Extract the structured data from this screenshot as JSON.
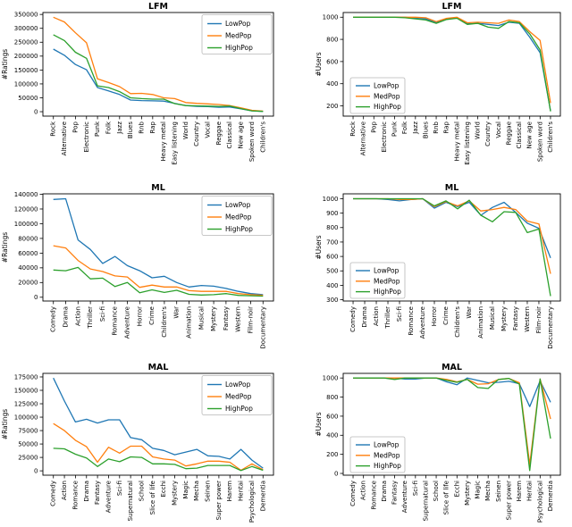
{
  "figure": {
    "background": "#ffffff"
  },
  "legend": {
    "labels": [
      "LowPop",
      "MedPop",
      "HighPop"
    ],
    "colors": {
      "LowPop": "#1f77b4",
      "MedPop": "#ff7f0e",
      "HighPop": "#2ca02c"
    }
  },
  "chart_data": [
    {
      "type": "line",
      "title": "LFM",
      "ylabel": "#Ratings",
      "xlabel": "",
      "legend_position": "upper-right",
      "grid": false,
      "ylim": [
        0,
        350000
      ],
      "yticks": [
        0,
        50000,
        100000,
        150000,
        200000,
        250000,
        300000,
        350000
      ],
      "categories": [
        "Rock",
        "Alternative",
        "Pop",
        "Electronic",
        "Punk",
        "Folk",
        "Jazz",
        "Blues",
        "Rnb",
        "Rap",
        "Heavy metal",
        "Easy listening",
        "World",
        "Country",
        "Vocal",
        "Reggae",
        "Classical",
        "New age",
        "Spoken word",
        "Children's"
      ],
      "series": [
        {
          "name": "LowPop",
          "color": "#1f77b4",
          "values": [
            225000,
            203000,
            170000,
            151000,
            87000,
            75000,
            62000,
            42000,
            40000,
            39000,
            38000,
            30000,
            22000,
            19000,
            18000,
            16000,
            17000,
            10000,
            3000,
            1000
          ]
        },
        {
          "name": "MedPop",
          "color": "#ff7f0e",
          "values": [
            340000,
            323000,
            284000,
            248000,
            118000,
            105000,
            90000,
            65000,
            66000,
            62000,
            50000,
            47000,
            33000,
            30000,
            28000,
            26000,
            22000,
            14000,
            5000,
            2000
          ]
        },
        {
          "name": "HighPop",
          "color": "#2ca02c",
          "values": [
            277000,
            256000,
            214000,
            192000,
            93000,
            87000,
            72000,
            50000,
            47000,
            45000,
            45000,
            29000,
            22000,
            21000,
            20000,
            19000,
            20000,
            11000,
            3000,
            1000
          ]
        }
      ]
    },
    {
      "type": "line",
      "title": "LFM",
      "ylabel": "#Users",
      "xlabel": "",
      "legend_position": "lower-left",
      "grid": false,
      "ylim": [
        200,
        1000
      ],
      "yticks": [
        200,
        400,
        600,
        800,
        1000
      ],
      "categories": [
        "Rock",
        "Alternative",
        "Pop",
        "Electronic",
        "Punk",
        "Folk",
        "Jazz",
        "Blues",
        "Rnb",
        "Rap",
        "Heavy metal",
        "Easy listening",
        "World",
        "Country",
        "Vocal",
        "Reggae",
        "Classical",
        "New age",
        "Spoken word",
        "Children's"
      ],
      "series": [
        {
          "name": "LowPop",
          "color": "#1f77b4",
          "values": [
            1000,
            1000,
            1000,
            1000,
            1000,
            1000,
            990,
            985,
            950,
            985,
            995,
            940,
            945,
            935,
            925,
            955,
            945,
            820,
            680,
            155
          ]
        },
        {
          "name": "MedPop",
          "color": "#ff7f0e",
          "values": [
            1000,
            1000,
            1000,
            1000,
            1000,
            1000,
            1000,
            995,
            960,
            990,
            1000,
            950,
            955,
            950,
            945,
            975,
            960,
            870,
            790,
            225
          ]
        },
        {
          "name": "HighPop",
          "color": "#2ca02c",
          "values": [
            1000,
            1000,
            1000,
            1000,
            1000,
            995,
            985,
            975,
            945,
            980,
            990,
            935,
            945,
            910,
            900,
            960,
            950,
            850,
            705,
            150
          ]
        }
      ]
    },
    {
      "type": "line",
      "title": "ML",
      "ylabel": "#Ratings",
      "xlabel": "",
      "legend_position": "upper-right",
      "grid": false,
      "ylim": [
        0,
        140000
      ],
      "yticks": [
        0,
        20000,
        40000,
        60000,
        80000,
        100000,
        120000,
        140000
      ],
      "categories": [
        "Comedy",
        "Drama",
        "Action",
        "Thriller",
        "Sci-fi",
        "Romance",
        "Adventure",
        "Horror",
        "Crime",
        "Children's",
        "War",
        "Animation",
        "Musical",
        "Mystery",
        "Fantasy",
        "Western",
        "Film-noir",
        "Documentary"
      ],
      "series": [
        {
          "name": "LowPop",
          "color": "#1f77b4",
          "values": [
            133000,
            134000,
            78000,
            65000,
            46000,
            55500,
            43000,
            36000,
            26500,
            28500,
            20000,
            14000,
            16000,
            15000,
            12000,
            8000,
            5000,
            3500
          ]
        },
        {
          "name": "MedPop",
          "color": "#ff7f0e",
          "values": [
            70000,
            67000,
            50000,
            38500,
            35000,
            29000,
            27500,
            13500,
            16500,
            14000,
            14000,
            9000,
            8000,
            8000,
            8000,
            5000,
            3500,
            2500
          ]
        },
        {
          "name": "HighPop",
          "color": "#2ca02c",
          "values": [
            37000,
            36000,
            40500,
            25000,
            26000,
            14500,
            20000,
            6000,
            10000,
            6500,
            9500,
            4000,
            3000,
            3500,
            5000,
            2500,
            2000,
            1500
          ]
        }
      ]
    },
    {
      "type": "line",
      "title": "ML",
      "ylabel": "#Users",
      "xlabel": "",
      "legend_position": "lower-left",
      "grid": false,
      "ylim": [
        300,
        1000
      ],
      "yticks": [
        300,
        400,
        500,
        600,
        700,
        800,
        900,
        1000
      ],
      "categories": [
        "Comedy",
        "Drama",
        "Action",
        "Thriller",
        "Sci-fi",
        "Romance",
        "Adventure",
        "Horror",
        "Crime",
        "Children's",
        "War",
        "Animation",
        "Musical",
        "Mystery",
        "Fantasy",
        "Western",
        "Film-noir",
        "Documentary"
      ],
      "series": [
        {
          "name": "LowPop",
          "color": "#1f77b4",
          "values": [
            1000,
            1000,
            1000,
            995,
            985,
            995,
            1000,
            935,
            975,
            945,
            975,
            885,
            940,
            975,
            905,
            830,
            795,
            590
          ]
        },
        {
          "name": "MedPop",
          "color": "#ff7f0e",
          "values": [
            1000,
            1000,
            1000,
            1000,
            995,
            995,
            1000,
            945,
            980,
            950,
            985,
            915,
            925,
            940,
            925,
            845,
            825,
            480
          ]
        },
        {
          "name": "HighPop",
          "color": "#2ca02c",
          "values": [
            1000,
            1000,
            1000,
            1000,
            1000,
            1000,
            1000,
            950,
            985,
            930,
            990,
            885,
            840,
            910,
            905,
            765,
            790,
            325
          ]
        }
      ]
    },
    {
      "type": "line",
      "title": "MAL",
      "ylabel": "#Ratings",
      "xlabel": "",
      "legend_position": "upper-right",
      "grid": false,
      "ylim": [
        0,
        175000
      ],
      "yticks": [
        0,
        25000,
        50000,
        75000,
        100000,
        125000,
        150000,
        175000
      ],
      "categories": [
        "Comedy",
        "Action",
        "Romance",
        "Drama",
        "Fantasy",
        "Adventure",
        "Sci-fi",
        "Supernatural",
        "School",
        "Slice of life",
        "Ecchi",
        "Mystery",
        "Magic",
        "Mecha",
        "Seinen",
        "Super power",
        "Harem",
        "Hentai",
        "Psychological",
        "Dementia"
      ],
      "series": [
        {
          "name": "LowPop",
          "color": "#1f77b4",
          "values": [
            173000,
            130000,
            91000,
            96000,
            89000,
            95000,
            95000,
            62000,
            58000,
            42000,
            38000,
            30000,
            35000,
            40000,
            28000,
            27000,
            22000,
            40000,
            20000,
            5000
          ]
        },
        {
          "name": "MedPop",
          "color": "#ff7f0e",
          "values": [
            88000,
            75000,
            57000,
            45000,
            16000,
            44000,
            33000,
            46000,
            46000,
            26000,
            22000,
            20000,
            9000,
            13000,
            18000,
            18000,
            16000,
            1000,
            13000,
            2000
          ]
        },
        {
          "name": "HighPop",
          "color": "#2ca02c",
          "values": [
            42000,
            41000,
            31000,
            24000,
            8000,
            22000,
            17000,
            26000,
            25000,
            13000,
            13000,
            12000,
            4000,
            5000,
            10000,
            10000,
            10000,
            500,
            8000,
            1000
          ]
        }
      ]
    },
    {
      "type": "line",
      "title": "MAL",
      "ylabel": "#Users",
      "xlabel": "",
      "legend_position": "lower-left",
      "grid": false,
      "ylim": [
        0,
        1000
      ],
      "yticks": [
        0,
        200,
        400,
        600,
        800,
        1000
      ],
      "categories": [
        "Comedy",
        "Action",
        "Romance",
        "Drama",
        "Fantasy",
        "Adventure",
        "Sci-fi",
        "Supernatural",
        "School",
        "Slice of life",
        "Ecchi",
        "Mystery",
        "Magic",
        "Mecha",
        "Seinen",
        "Super power",
        "Harem",
        "Hentai",
        "Psychological",
        "Dementia"
      ],
      "series": [
        {
          "name": "LowPop",
          "color": "#1f77b4",
          "values": [
            1000,
            1000,
            1000,
            1000,
            1000,
            990,
            990,
            1000,
            1000,
            960,
            930,
            1000,
            975,
            950,
            955,
            965,
            940,
            700,
            970,
            745
          ]
        },
        {
          "name": "MedPop",
          "color": "#ff7f0e",
          "values": [
            1000,
            1000,
            1000,
            1000,
            1000,
            1000,
            1000,
            1000,
            1000,
            985,
            960,
            985,
            935,
            940,
            985,
            995,
            950,
            95,
            990,
            570
          ]
        },
        {
          "name": "HighPop",
          "color": "#2ca02c",
          "values": [
            1000,
            1000,
            1000,
            1000,
            985,
            1000,
            1000,
            1000,
            1000,
            975,
            955,
            985,
            900,
            890,
            985,
            995,
            935,
            30,
            990,
            365
          ]
        }
      ]
    }
  ]
}
